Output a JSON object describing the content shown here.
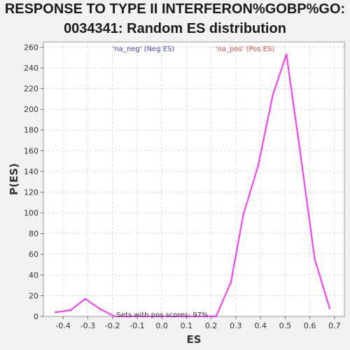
{
  "chart_data": {
    "type": "line",
    "title_lines": [
      "RESPONSE TO TYPE II INTERFERON%GOBP%GO:",
      "0034341: Random ES distribution"
    ],
    "xlabel": "ES",
    "ylabel": "P(ES)",
    "xlim": [
      -0.48,
      0.74
    ],
    "ylim": [
      0,
      265
    ],
    "x_ticks": [
      -0.4,
      -0.3,
      -0.2,
      -0.1,
      0.0,
      0.1,
      0.2,
      0.3,
      0.4,
      0.5,
      0.6,
      0.7
    ],
    "x_tick_labels": [
      "-0.4",
      "-0.3",
      "-0.2",
      "-0.1",
      "0.0",
      "0.1",
      "0.2",
      "0.3",
      "0.4",
      "0.5",
      "0.6",
      "0.7"
    ],
    "y_ticks": [
      0,
      20,
      40,
      60,
      80,
      100,
      120,
      140,
      160,
      180,
      200,
      220,
      240,
      260
    ],
    "grid": true,
    "series": [
      {
        "color": "#ff33ff",
        "x": [
          -0.43,
          -0.37,
          -0.31,
          -0.25,
          -0.19,
          -0.13,
          -0.07,
          -0.01,
          0.05,
          0.11,
          0.17,
          0.22,
          0.28,
          0.33,
          0.39,
          0.45,
          0.505,
          0.56,
          0.62,
          0.68
        ],
        "y": [
          4,
          6,
          17,
          7,
          0,
          0,
          0,
          0,
          0,
          0,
          0,
          0,
          33,
          98,
          145,
          214,
          253,
          160,
          55,
          8
        ]
      }
    ],
    "legend": [
      {
        "label": "'na_neg' (Neg ES)",
        "color": "#4444dd"
      },
      {
        "label": "'na_pos' (Pos ES)",
        "color": "#ee4444"
      }
    ],
    "annotation": "Sets with pos scores: 97%"
  }
}
